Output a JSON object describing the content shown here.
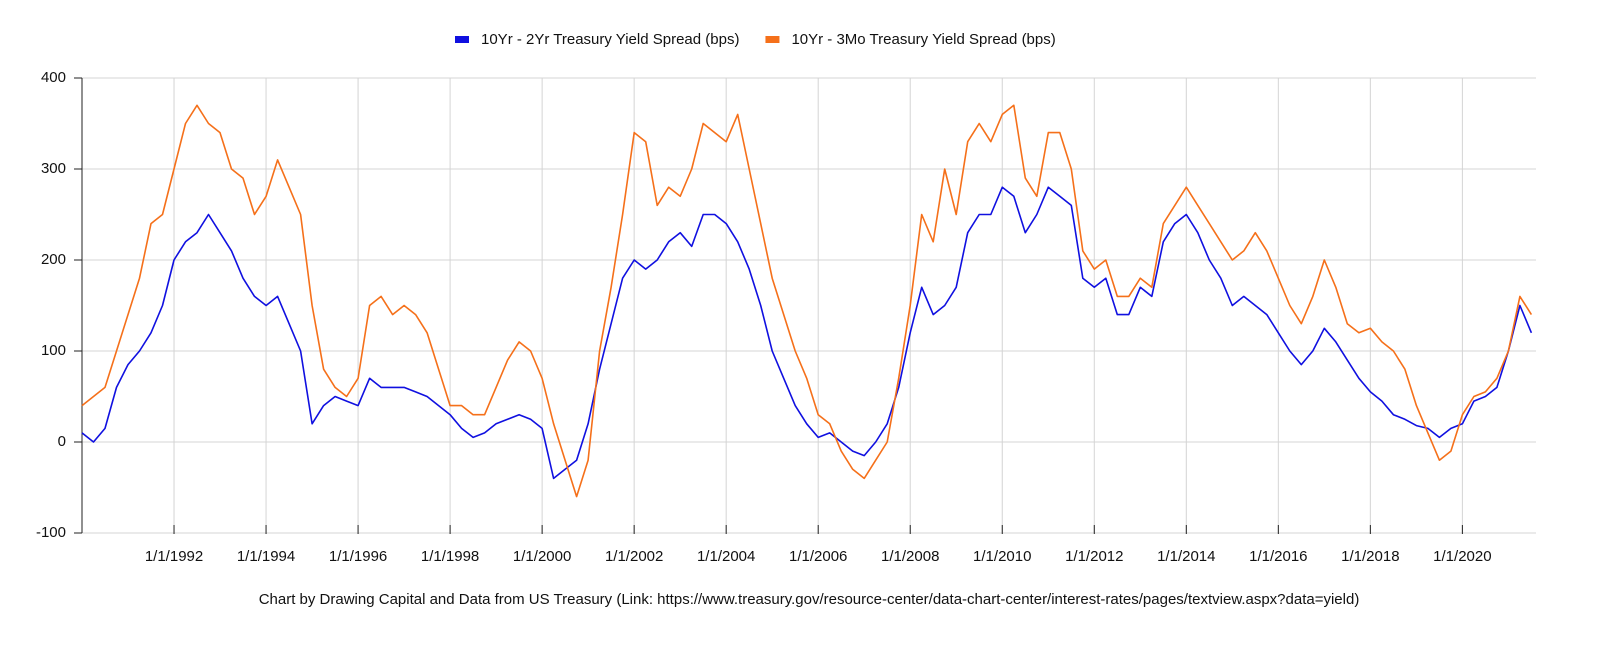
{
  "chart_data": {
    "type": "line",
    "caption": "Chart by Drawing Capital and Data from US Treasury (Link: https://www.treasury.gov/resource-center/data-chart-center/interest-rates/pages/textview.aspx?data=yield)",
    "x": [
      1990,
      1990.25,
      1990.5,
      1990.75,
      1991,
      1991.25,
      1991.5,
      1991.75,
      1992,
      1992.25,
      1992.5,
      1992.75,
      1993,
      1993.25,
      1993.5,
      1993.75,
      1994,
      1994.25,
      1994.5,
      1994.75,
      1995,
      1995.25,
      1995.5,
      1995.75,
      1996,
      1996.25,
      1996.5,
      1996.75,
      1997,
      1997.25,
      1997.5,
      1997.75,
      1998,
      1998.25,
      1998.5,
      1998.75,
      1999,
      1999.25,
      1999.5,
      1999.75,
      2000,
      2000.25,
      2000.5,
      2000.75,
      2001,
      2001.25,
      2001.5,
      2001.75,
      2002,
      2002.25,
      2002.5,
      2002.75,
      2003,
      2003.25,
      2003.5,
      2003.75,
      2004,
      2004.25,
      2004.5,
      2004.75,
      2005,
      2005.25,
      2005.5,
      2005.75,
      2006,
      2006.25,
      2006.5,
      2006.75,
      2007,
      2007.25,
      2007.5,
      2007.75,
      2008,
      2008.25,
      2008.5,
      2008.75,
      2009,
      2009.25,
      2009.5,
      2009.75,
      2010,
      2010.25,
      2010.5,
      2010.75,
      2011,
      2011.25,
      2011.5,
      2011.75,
      2012,
      2012.25,
      2012.5,
      2012.75,
      2013,
      2013.25,
      2013.5,
      2013.75,
      2014,
      2014.25,
      2014.5,
      2014.75,
      2015,
      2015.25,
      2015.5,
      2015.75,
      2016,
      2016.25,
      2016.5,
      2016.75,
      2017,
      2017.25,
      2017.5,
      2017.75,
      2018,
      2018.25,
      2018.5,
      2018.75,
      2019,
      2019.25,
      2019.5,
      2019.75,
      2020,
      2020.25,
      2020.5,
      2020.75,
      2021,
      2021.25,
      2021.5
    ],
    "series": [
      {
        "name": "10Yr - 2Yr Treasury Yield Spread (bps)",
        "color": "#1010e0",
        "values": [
          10,
          0,
          15,
          60,
          85,
          100,
          120,
          150,
          200,
          220,
          230,
          250,
          230,
          210,
          180,
          160,
          150,
          160,
          130,
          100,
          20,
          40,
          50,
          45,
          40,
          70,
          60,
          60,
          60,
          55,
          50,
          40,
          30,
          15,
          5,
          10,
          20,
          25,
          30,
          25,
          15,
          -40,
          -30,
          -20,
          20,
          80,
          130,
          180,
          200,
          190,
          200,
          220,
          230,
          215,
          250,
          250,
          240,
          220,
          190,
          150,
          100,
          70,
          40,
          20,
          5,
          10,
          0,
          -10,
          -15,
          0,
          20,
          60,
          120,
          170,
          140,
          150,
          170,
          230,
          250,
          250,
          280,
          270,
          230,
          250,
          280,
          270,
          260,
          180,
          170,
          180,
          140,
          140,
          170,
          160,
          220,
          240,
          250,
          230,
          200,
          180,
          150,
          160,
          150,
          140,
          120,
          100,
          85,
          100,
          125,
          110,
          90,
          70,
          55,
          45,
          30,
          25,
          18,
          15,
          5,
          15,
          20,
          45,
          50,
          60,
          100,
          150,
          120
        ]
      },
      {
        "name": "10Yr - 3Mo Treasury Yield Spread (bps)",
        "color": "#f5701a",
        "values": [
          40,
          50,
          60,
          100,
          140,
          180,
          240,
          250,
          300,
          350,
          370,
          350,
          340,
          300,
          290,
          250,
          270,
          310,
          280,
          250,
          150,
          80,
          60,
          50,
          70,
          150,
          160,
          140,
          150,
          140,
          120,
          80,
          40,
          40,
          30,
          30,
          60,
          90,
          110,
          100,
          70,
          20,
          -20,
          -60,
          -20,
          100,
          170,
          250,
          340,
          330,
          260,
          280,
          270,
          300,
          350,
          340,
          330,
          360,
          300,
          240,
          180,
          140,
          100,
          70,
          30,
          20,
          -10,
          -30,
          -40,
          -20,
          0,
          70,
          150,
          250,
          220,
          300,
          250,
          330,
          350,
          330,
          360,
          370,
          290,
          270,
          340,
          340,
          300,
          210,
          190,
          200,
          160,
          160,
          180,
          170,
          240,
          260,
          280,
          260,
          240,
          220,
          200,
          210,
          230,
          210,
          180,
          150,
          130,
          160,
          200,
          170,
          130,
          120,
          125,
          110,
          100,
          80,
          40,
          10,
          -20,
          -10,
          30,
          50,
          55,
          70,
          100,
          160,
          140
        ]
      }
    ],
    "xlim": [
      1990,
      2021.6
    ],
    "xticks": [
      {
        "value": 1992,
        "label": "1/1/1992"
      },
      {
        "value": 1994,
        "label": "1/1/1994"
      },
      {
        "value": 1996,
        "label": "1/1/1996"
      },
      {
        "value": 1998,
        "label": "1/1/1998"
      },
      {
        "value": 2000,
        "label": "1/1/2000"
      },
      {
        "value": 2002,
        "label": "1/1/2002"
      },
      {
        "value": 2004,
        "label": "1/1/2004"
      },
      {
        "value": 2006,
        "label": "1/1/2006"
      },
      {
        "value": 2008,
        "label": "1/1/2008"
      },
      {
        "value": 2010,
        "label": "1/1/2010"
      },
      {
        "value": 2012,
        "label": "1/1/2012"
      },
      {
        "value": 2014,
        "label": "1/1/2014"
      },
      {
        "value": 2016,
        "label": "1/1/2016"
      },
      {
        "value": 2018,
        "label": "1/1/2018"
      },
      {
        "value": 2020,
        "label": "1/1/2020"
      }
    ],
    "ylim": [
      -100,
      400
    ],
    "yticks": [
      -100,
      0,
      100,
      200,
      300,
      400
    ],
    "grid": true,
    "legend": "top"
  }
}
